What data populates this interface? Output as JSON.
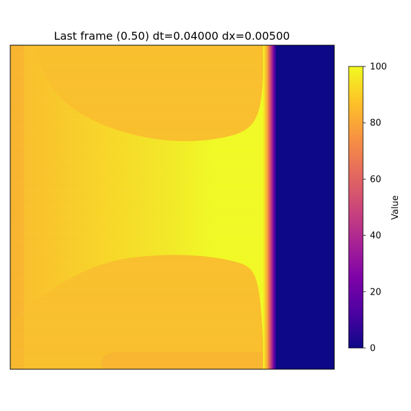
{
  "chart_data": {
    "type": "heatmap",
    "title": "Last frame (0.50) dt=0.04000 dx=0.00500",
    "colormap": "plasma",
    "xticks_visible": false,
    "yticks_visible": false,
    "grid": false,
    "colorbar": {
      "label": "Value",
      "range": [
        0,
        100
      ],
      "ticks": [
        "0",
        "20",
        "40",
        "60",
        "80",
        "100"
      ],
      "tick_values": [
        0,
        20,
        40,
        60,
        80,
        100
      ],
      "placement": "right"
    },
    "field_summary": {
      "hot_region_value": 100,
      "warm_region_value": 88,
      "edge_region_value": 86,
      "cold_region_value": 0,
      "front_position_fraction": 0.795
    }
  }
}
